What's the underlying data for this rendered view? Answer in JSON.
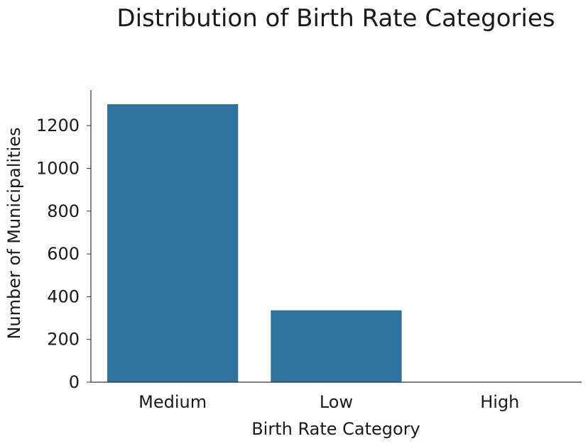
{
  "chart_data": {
    "type": "bar",
    "title": "Distribution of Birth Rate Categories",
    "xlabel": "Birth Rate Category",
    "ylabel": "Number of Municipalities",
    "categories": [
      "Medium",
      "Low",
      "High"
    ],
    "values": [
      1300,
      336,
      0
    ],
    "ylim": [
      0,
      1300
    ],
    "yticks": [
      0,
      200,
      400,
      600,
      800,
      1000,
      1200
    ],
    "bar_color": "#2e73a0",
    "grid": false,
    "legend": "none"
  }
}
